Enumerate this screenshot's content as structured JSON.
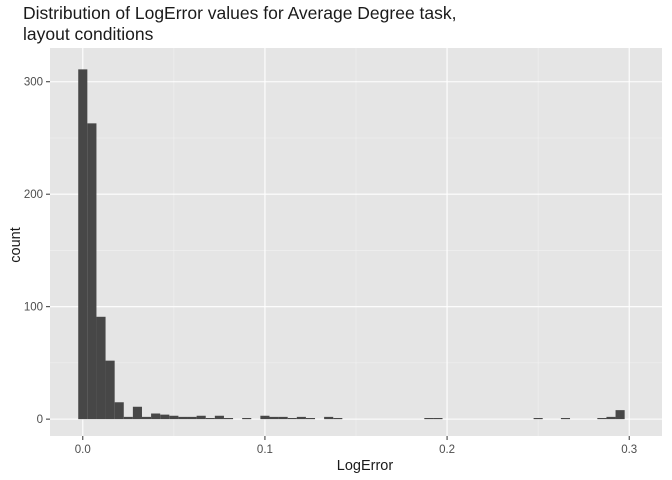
{
  "chart_data": {
    "type": "bar",
    "subtype": "histogram",
    "title": "Distribution of LogError values for Average Degree task,",
    "subtitle": "layout conditions",
    "xlabel": "LogError",
    "ylabel": "count",
    "xlim": [
      -0.018,
      0.318
    ],
    "ylim": [
      -15,
      330
    ],
    "x_ticks": [
      0.0,
      0.1,
      0.2,
      0.3
    ],
    "x_tick_labels": [
      "0.0",
      "0.1",
      "0.2",
      "0.3"
    ],
    "y_ticks": [
      0,
      100,
      200,
      300
    ],
    "y_tick_labels": [
      "0",
      "100",
      "200",
      "300"
    ],
    "grid": true,
    "legend": "none",
    "bin_width": 0.005,
    "bins": [
      {
        "x": 0.0,
        "count": 311
      },
      {
        "x": 0.005,
        "count": 263
      },
      {
        "x": 0.01,
        "count": 91
      },
      {
        "x": 0.015,
        "count": 52
      },
      {
        "x": 0.02,
        "count": 15
      },
      {
        "x": 0.025,
        "count": 2
      },
      {
        "x": 0.03,
        "count": 11
      },
      {
        "x": 0.035,
        "count": 2
      },
      {
        "x": 0.04,
        "count": 5
      },
      {
        "x": 0.045,
        "count": 4
      },
      {
        "x": 0.05,
        "count": 3
      },
      {
        "x": 0.055,
        "count": 2
      },
      {
        "x": 0.06,
        "count": 2
      },
      {
        "x": 0.065,
        "count": 3
      },
      {
        "x": 0.07,
        "count": 1
      },
      {
        "x": 0.075,
        "count": 3
      },
      {
        "x": 0.08,
        "count": 1
      },
      {
        "x": 0.09,
        "count": 1
      },
      {
        "x": 0.1,
        "count": 3
      },
      {
        "x": 0.105,
        "count": 2
      },
      {
        "x": 0.11,
        "count": 2
      },
      {
        "x": 0.115,
        "count": 1
      },
      {
        "x": 0.12,
        "count": 2
      },
      {
        "x": 0.125,
        "count": 1
      },
      {
        "x": 0.135,
        "count": 2
      },
      {
        "x": 0.14,
        "count": 1
      },
      {
        "x": 0.19,
        "count": 1
      },
      {
        "x": 0.195,
        "count": 1
      },
      {
        "x": 0.25,
        "count": 1
      },
      {
        "x": 0.265,
        "count": 1
      },
      {
        "x": 0.285,
        "count": 1
      },
      {
        "x": 0.29,
        "count": 2
      },
      {
        "x": 0.295,
        "count": 8
      }
    ],
    "colors": {
      "panel_background": "#e5e5e5",
      "bar_fill": "#474747",
      "grid": "#ffffff"
    }
  }
}
